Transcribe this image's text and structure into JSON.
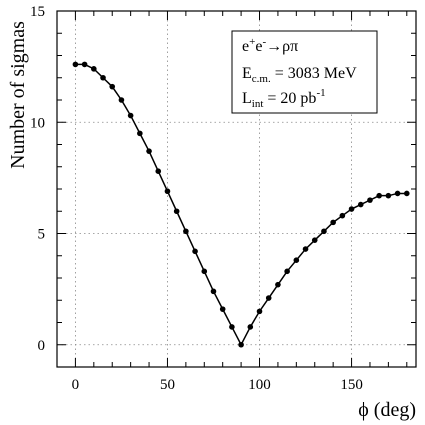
{
  "chart_data": {
    "type": "line",
    "xlabel": "ϕ (deg)",
    "ylabel": "Number of sigmas",
    "xlim": [
      -10,
      185
    ],
    "ylim": [
      -1,
      15
    ],
    "xticks": [
      0,
      50,
      100,
      150
    ],
    "yticks": [
      0,
      5,
      10,
      15
    ],
    "grid": true,
    "legend_position": "top-right",
    "legend": {
      "line1": {
        "prefix": "e",
        "sup1": "+",
        "mid": "e",
        "sup2": "-",
        "suffix": "→ρπ"
      },
      "line2": {
        "prefix": "E",
        "sub": "c.m.",
        "suffix": " = 3083 MeV"
      },
      "line3": {
        "prefix": "L",
        "sub": "int",
        "suffix": " = 20 pb",
        "sup": "-1"
      }
    },
    "series": [
      {
        "x": [
          0,
          5,
          10,
          15,
          20,
          25,
          30,
          35,
          40,
          45,
          50,
          55,
          60,
          65,
          70,
          75,
          80,
          85,
          90,
          95,
          100,
          105,
          110,
          115,
          120,
          125,
          130,
          135,
          140,
          145,
          150,
          155,
          160,
          165,
          170,
          175,
          180
        ],
        "y": [
          12.6,
          12.6,
          12.4,
          12.0,
          11.6,
          11.0,
          10.3,
          9.5,
          8.7,
          7.8,
          6.9,
          6.0,
          5.1,
          4.2,
          3.3,
          2.4,
          1.6,
          0.8,
          0.0,
          0.8,
          1.5,
          2.1,
          2.7,
          3.3,
          3.8,
          4.3,
          4.7,
          5.1,
          5.5,
          5.8,
          6.1,
          6.3,
          6.5,
          6.7,
          6.7,
          6.8,
          6.8
        ]
      }
    ]
  }
}
